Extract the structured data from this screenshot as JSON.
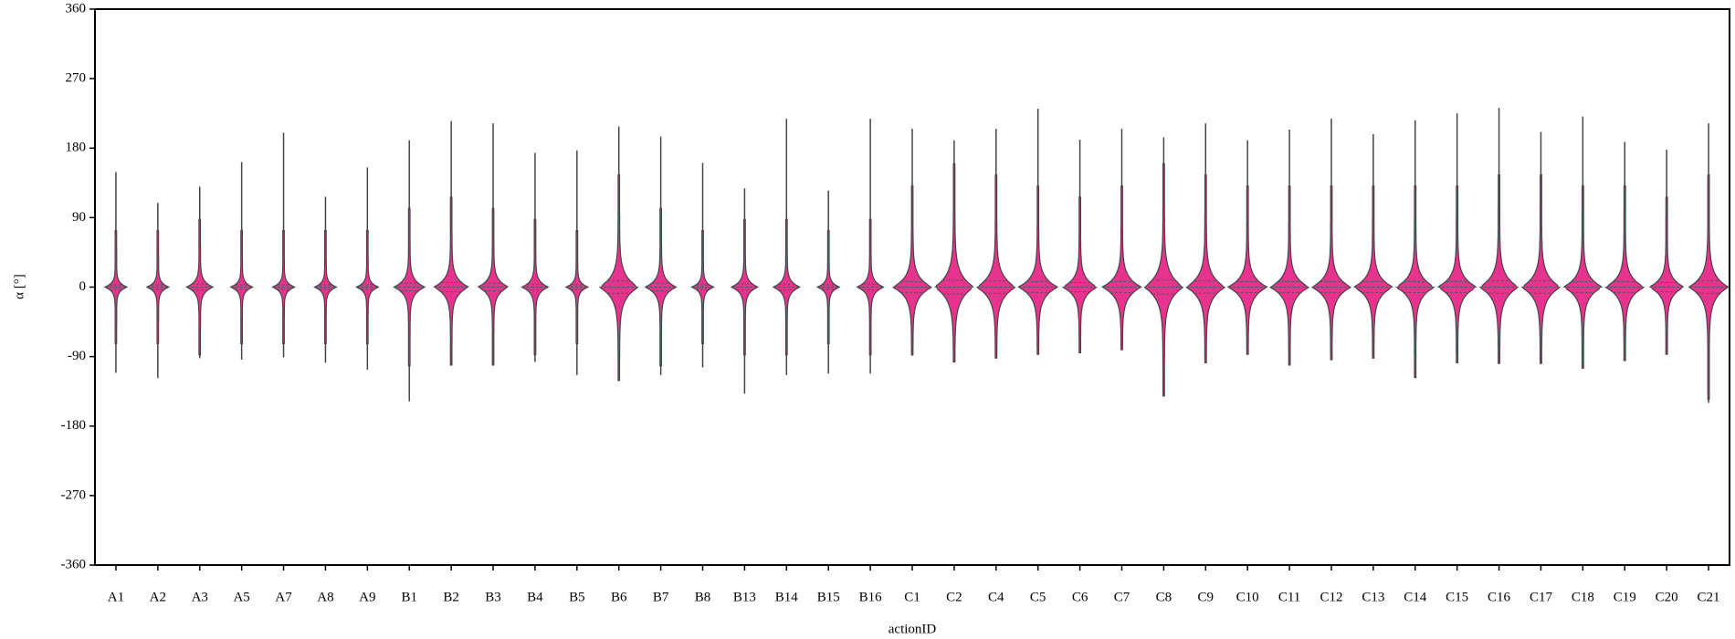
{
  "chart_data": {
    "type": "violin",
    "x_label": "actionID",
    "y_label": "α [°]",
    "categories": [
      "A1",
      "A2",
      "A3",
      "A5",
      "A7",
      "A8",
      "A9",
      "B1",
      "B2",
      "B3",
      "B4",
      "B5",
      "B6",
      "B7",
      "B8",
      "B13",
      "B14",
      "B15",
      "B16",
      "C1",
      "C2",
      "C4",
      "C5",
      "C6",
      "C7",
      "C8",
      "C9",
      "C10",
      "C11",
      "C12",
      "C13",
      "C14",
      "C15",
      "C16",
      "C17",
      "C18",
      "C19",
      "C20",
      "C21"
    ],
    "max": [
      149,
      109,
      130,
      162,
      200,
      117,
      155,
      190,
      215,
      212,
      174,
      177,
      208,
      195,
      161,
      128,
      218,
      125,
      218,
      205,
      190,
      205,
      231,
      191,
      205,
      194,
      212,
      190,
      204,
      218,
      198,
      216,
      225,
      232,
      201,
      221,
      188,
      178,
      212
    ],
    "min": [
      -111,
      -118,
      -92,
      -94,
      -91,
      -98,
      -107,
      -148,
      -101,
      -101,
      -97,
      -114,
      -121,
      -114,
      -104,
      -138,
      -114,
      -112,
      -112,
      -88,
      -97,
      -92,
      -87,
      -85,
      -81,
      -141,
      -98,
      -87,
      -101,
      -94,
      -92,
      -117,
      -98,
      -99,
      -99,
      -105,
      -95,
      -87,
      -150
    ],
    "q1": [
      -3,
      -3,
      -4,
      -3,
      -3,
      -3,
      -3,
      -5,
      -6,
      -5,
      -4,
      -3,
      -8,
      -5,
      -3,
      -4,
      -4,
      -3,
      -4,
      -7,
      -9,
      -8,
      -7,
      -6,
      -7,
      -9,
      -8,
      -7,
      -7,
      -7,
      -7,
      -7,
      -7,
      -8,
      -8,
      -7,
      -7,
      -6,
      -8
    ],
    "median": [
      0,
      0,
      0,
      0,
      0,
      0,
      0,
      0,
      0,
      0,
      0,
      0,
      0,
      0,
      0,
      0,
      0,
      0,
      0,
      0,
      0,
      0,
      0,
      0,
      0,
      0,
      0,
      0,
      0,
      0,
      0,
      0,
      0,
      0,
      0,
      0,
      0,
      0,
      0
    ],
    "q3": [
      3,
      3,
      4,
      3,
      3,
      3,
      3,
      5,
      6,
      5,
      4,
      3,
      8,
      5,
      3,
      4,
      4,
      3,
      4,
      7,
      9,
      8,
      7,
      6,
      7,
      9,
      8,
      7,
      7,
      7,
      7,
      7,
      7,
      8,
      8,
      7,
      7,
      6,
      8
    ],
    "color": "#e8338e",
    "ylim": [
      -360,
      360
    ],
    "yticks": [
      -360,
      -270,
      -180,
      -90,
      0,
      90,
      180,
      270,
      360
    ]
  }
}
